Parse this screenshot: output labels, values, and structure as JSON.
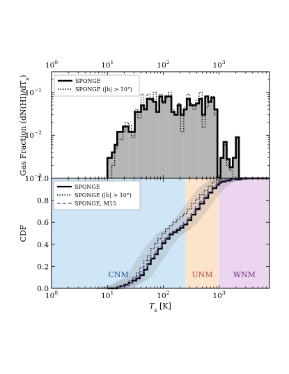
{
  "colors": {
    "hist_fill": "#b4b4b4",
    "cnm": "#cfe6f7",
    "unm": "#fbe3cc",
    "wnm": "#ecd5ef",
    "cnm_text": "#2b4f8a",
    "unm_text": "#b34a4a",
    "wnm_text": "#6b2f7a",
    "m15": "#6a5aa8",
    "bootstrap": "#8a8a8a"
  },
  "chart_data": [
    {
      "type": "histogram",
      "top_axis_ticks": [
        "10",
        "10",
        "10",
        "10"
      ],
      "top_axis_exponents": [
        "0",
        "1",
        "2",
        "3"
      ],
      "xlim": [
        1,
        8000
      ],
      "xscale": "log",
      "ylabel": "Gas Fraction (dN(HI)/dT",
      "ylabel_sub": "s",
      "ylabel_end": ")",
      "ylim": [
        0.001,
        0.3
      ],
      "yscale": "log",
      "y_ticks": [
        "10",
        "10",
        "10"
      ],
      "y_tick_exponents": [
        "−3",
        "−2",
        "−1"
      ],
      "y_tick_values": [
        0.001,
        0.01,
        0.1
      ],
      "legend": [
        {
          "label": "SPONGE",
          "style": "solid"
        },
        {
          "label": "SPONGE (|b| > 10°)",
          "style": "dotted"
        }
      ],
      "series": [
        {
          "name": "SPONGE",
          "bin_edges": [
            10,
            12,
            13.5,
            15,
            17,
            19,
            21,
            24,
            27,
            31,
            35,
            40,
            45,
            51,
            58,
            66,
            75,
            85,
            96,
            109,
            124,
            140,
            159,
            181,
            205,
            233,
            264,
            300,
            340,
            386,
            438,
            497,
            564,
            640,
            726,
            824,
            935,
            1060,
            1200,
            1370,
            1550,
            1760,
            2000,
            2270,
            2580,
            2930
          ],
          "values": [
            0.003,
            0.004,
            0.006,
            0.012,
            0.012,
            0.016,
            0.016,
            0.012,
            0.012,
            0.035,
            0.035,
            0.05,
            0.04,
            0.07,
            0.07,
            0.06,
            0.035,
            0.08,
            0.06,
            0.08,
            0.08,
            0.035,
            0.03,
            0.05,
            0.03,
            0.04,
            0.07,
            0.05,
            0.05,
            0.055,
            0.07,
            0.03,
            0.08,
            0.06,
            0.075,
            0.04,
            0.001,
            0.003,
            0.007,
            0.0028,
            0.0018,
            0.003,
            0.009,
            0.001,
            0.001
          ]
        },
        {
          "name": "SPONGE (|b| > 10°)",
          "bin_edges": [
            10,
            12,
            13.5,
            15,
            17,
            19,
            21,
            24,
            27,
            31,
            35,
            40,
            45,
            51,
            58,
            66,
            75,
            85,
            96,
            109,
            124,
            140,
            159,
            181,
            205,
            233,
            264,
            300,
            340,
            386,
            438,
            497,
            564,
            640,
            726,
            824,
            935,
            1060,
            1200,
            1370,
            1550,
            1760,
            2000,
            2270,
            2580,
            2930
          ],
          "values": [
            0.001,
            0.002,
            0.005,
            0.008,
            0.008,
            0.012,
            0.02,
            0.017,
            0.009,
            0.04,
            0.025,
            0.09,
            0.045,
            0.09,
            0.065,
            0.1,
            0.035,
            0.09,
            0.055,
            0.075,
            0.1,
            0.04,
            0.03,
            0.055,
            0.012,
            0.045,
            0.09,
            0.055,
            0.04,
            0.065,
            0.1,
            0.015,
            0.045,
            0.06,
            0.08,
            0.03,
            0.001,
            0.003,
            0.006,
            0.002,
            0.0015,
            0.001,
            0.001,
            0.001,
            0.001
          ]
        }
      ]
    },
    {
      "type": "line",
      "xlabel": "T",
      "xlabel_sub": "s",
      "xlabel_unit": " [K]",
      "xscale": "log",
      "xlim": [
        1,
        8000
      ],
      "ylabel": "CDF",
      "ylim": [
        0,
        1
      ],
      "x_ticks": [
        "10",
        "10",
        "10",
        "10"
      ],
      "x_tick_exponents": [
        "0",
        "1",
        "2",
        "3"
      ],
      "y_ticks": [
        "0.0",
        "0.2",
        "0.4",
        "0.6",
        "0.8",
        "1.0"
      ],
      "y_tick_values": [
        0,
        0.2,
        0.4,
        0.6,
        0.8,
        1.0
      ],
      "regions": [
        {
          "label": "CNM",
          "from": 1,
          "to": 250
        },
        {
          "label": "UNM",
          "from": 250,
          "to": 1000
        },
        {
          "label": "WNM",
          "from": 1000,
          "to": 8000
        }
      ],
      "legend": [
        {
          "label": "SPONGE",
          "style": "solid"
        },
        {
          "label": "SPONGE (|b| > 10°)",
          "style": "dotted"
        },
        {
          "label": "SPONGE, M15",
          "style": "dashed"
        }
      ],
      "series": [
        {
          "name": "SPONGE",
          "x": [
            10,
            13,
            15,
            17,
            20,
            24,
            28,
            33,
            38,
            45,
            52,
            60,
            70,
            80,
            95,
            110,
            130,
            150,
            175,
            200,
            230,
            270,
            320,
            380,
            450,
            540,
            640,
            760,
            900,
            1000,
            1100,
            1300,
            1600,
            2000,
            2500,
            3000,
            8000
          ],
          "y": [
            0.0,
            0.0,
            0.01,
            0.02,
            0.03,
            0.05,
            0.07,
            0.09,
            0.12,
            0.17,
            0.22,
            0.27,
            0.31,
            0.36,
            0.41,
            0.45,
            0.49,
            0.51,
            0.53,
            0.55,
            0.58,
            0.62,
            0.67,
            0.72,
            0.77,
            0.82,
            0.87,
            0.91,
            0.94,
            0.96,
            0.97,
            0.98,
            0.99,
            0.99,
            1.0,
            1.0,
            1.0
          ]
        },
        {
          "name": "SPONGE (|b| > 10°)",
          "x": [
            10,
            13,
            15,
            17,
            20,
            24,
            28,
            33,
            38,
            45,
            52,
            60,
            70,
            80,
            95,
            110,
            130,
            150,
            175,
            200,
            230,
            270,
            320,
            380,
            450,
            540,
            640,
            760,
            900,
            1000,
            1100,
            1300,
            1600,
            2000,
            2500,
            3000,
            8000
          ],
          "y": [
            0.0,
            0.0,
            0.01,
            0.02,
            0.04,
            0.07,
            0.1,
            0.14,
            0.19,
            0.25,
            0.3,
            0.36,
            0.41,
            0.45,
            0.5,
            0.54,
            0.57,
            0.6,
            0.63,
            0.65,
            0.68,
            0.72,
            0.77,
            0.81,
            0.85,
            0.89,
            0.93,
            0.96,
            0.98,
            0.99,
            1.0,
            1.0,
            1.0,
            1.0,
            1.0,
            1.0,
            1.0
          ]
        },
        {
          "name": "SPONGE, M15",
          "x": [
            10,
            13,
            15,
            17,
            20,
            24,
            28,
            33,
            38,
            45,
            52,
            60,
            70,
            80,
            95,
            110,
            130,
            150,
            175,
            200,
            230,
            270,
            320,
            380,
            450,
            540,
            640,
            760,
            900,
            1000,
            1100,
            1300,
            1600,
            2000,
            2500,
            3000,
            8000
          ],
          "y": [
            0.0,
            0.0,
            0.01,
            0.02,
            0.03,
            0.05,
            0.08,
            0.11,
            0.15,
            0.2,
            0.25,
            0.29,
            0.33,
            0.38,
            0.43,
            0.47,
            0.5,
            0.52,
            0.54,
            0.57,
            0.6,
            0.64,
            0.69,
            0.74,
            0.79,
            0.84,
            0.88,
            0.92,
            0.95,
            0.97,
            0.98,
            0.99,
            0.99,
            1.0,
            1.0,
            1.0,
            1.0
          ]
        }
      ]
    }
  ]
}
